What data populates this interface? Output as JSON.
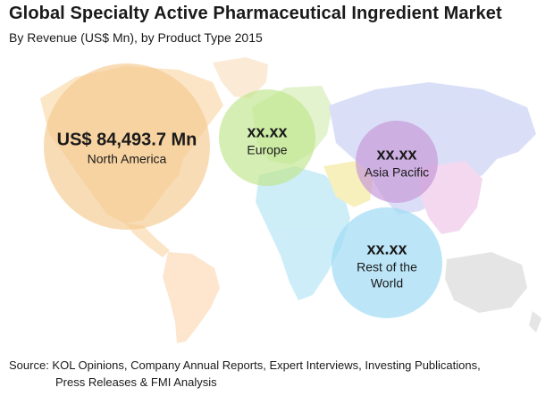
{
  "header": {
    "title": "Global Specialty Active Pharmaceutical Ingredient Market",
    "subtitle": "By Revenue (US$ Mn), by Product Type 2015"
  },
  "regions": [
    {
      "id": "north-america",
      "value": "US$ 84,493.7 Mn",
      "name": "North America",
      "color": "#f5c98f"
    },
    {
      "id": "europe",
      "value": "xx.xx",
      "name": "Europe",
      "color": "#bfe58a"
    },
    {
      "id": "asia-pacific",
      "value": "xx.xx",
      "name": "Asia Pacific",
      "color": "#c79ad8"
    },
    {
      "id": "rest-of-world",
      "value": "xx.xx",
      "name_line1": "Rest of the",
      "name_line2": "World",
      "color": "#9fdcf5"
    }
  ],
  "map_colors": {
    "north_america": "#fbe3c0",
    "south_america": "#fde3c9",
    "europe": "#dff2c8",
    "africa": "#c8ecf7",
    "asia": "#d6dcf7",
    "middle_east": "#f7efb6",
    "southeast_asia": "#f2d4ee",
    "oceania": "#e3e3e3",
    "greenland": "#fbe9d2"
  },
  "source": {
    "line1": "Source: KOL Opinions, Company Annual Reports, Expert Interviews, Investing Publications,",
    "line2": "Press Releases & FMI Analysis"
  }
}
